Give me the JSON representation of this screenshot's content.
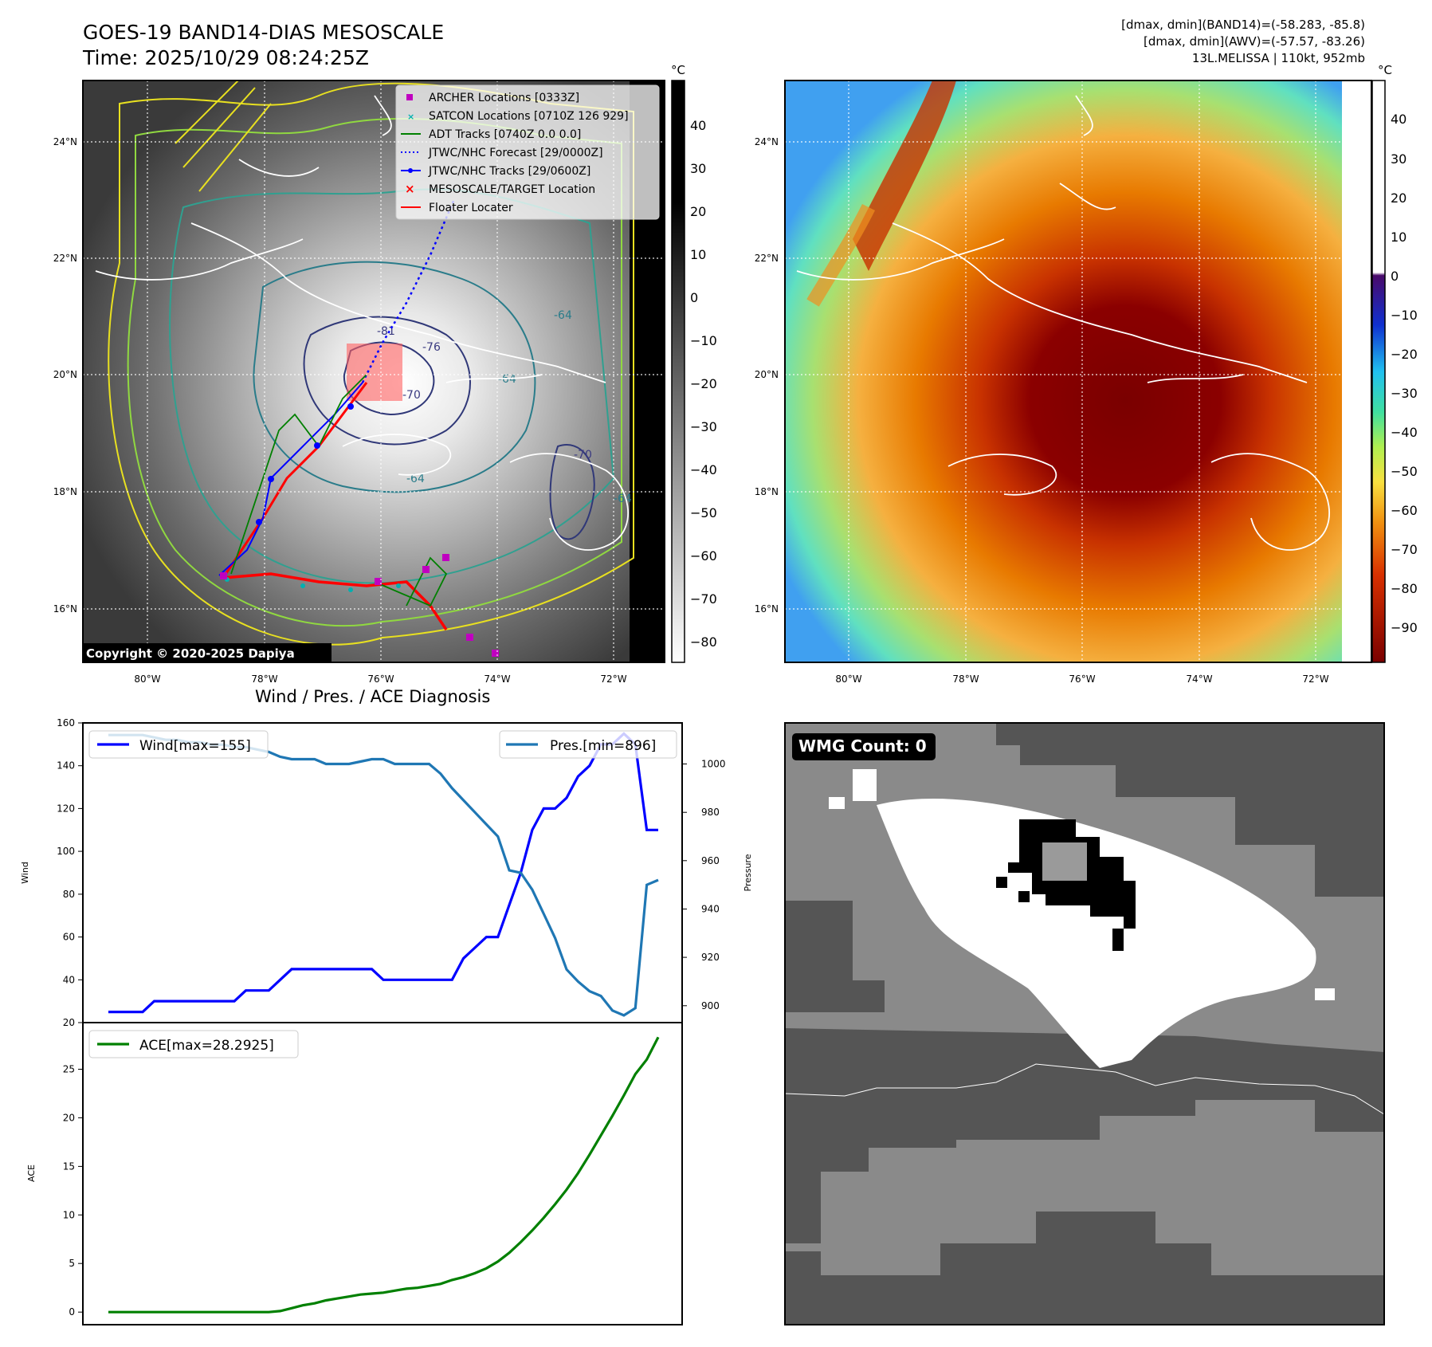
{
  "header": {
    "title_line1": "GOES-19 BAND14-DIAS MESOSCALE",
    "title_line2": "Time: 2025/10/29 08:24:25Z",
    "info_line1": "[dmax, dmin](BAND14)=(-58.283, -85.8)",
    "info_line2": "[dmax, dmin](AWV)=(-57.57, -83.26)",
    "info_line3": "13L.MELISSA | 110kt, 952mb"
  },
  "map_panel": {
    "lon_labels": [
      "80°W",
      "78°W",
      "76°W",
      "74°W",
      "72°W"
    ],
    "lat_labels": [
      "24°N",
      "22°N",
      "20°N",
      "18°N",
      "16°N"
    ],
    "copyright": "Copyright © 2020-2025 Dapiya",
    "legend": [
      "ARCHER Locations [0333Z]",
      "SATCON Locations [0710Z 126 929]",
      "ADT Tracks [0740Z 0.0 0.0]",
      "JTWC/NHC Forecast [29/0000Z]",
      "JTWC/NHC Tracks [29/0600Z]",
      "MESOSCALE/TARGET Location",
      "Floater Locater"
    ],
    "legend_colors": [
      "#c000c0",
      "#00b0b0",
      "#008000",
      "#0000ff",
      "#0000ff",
      "#ff0000",
      "#ff0000"
    ],
    "contour_labels": [
      "-81",
      "-76",
      "-70",
      "-64",
      "-64",
      "-64",
      "-64",
      "-70"
    ],
    "colorbar_unit": "°C",
    "colorbar_ticks": [
      "40",
      "30",
      "20",
      "10",
      "0",
      "−10",
      "−20",
      "−30",
      "−40",
      "−50",
      "−60",
      "−70",
      "−80"
    ]
  },
  "awv_panel": {
    "lon_labels": [
      "80°W",
      "78°W",
      "76°W",
      "74°W",
      "72°W"
    ],
    "lat_labels": [
      "24°N",
      "22°N",
      "20°N",
      "18°N",
      "16°N"
    ],
    "colorbar_unit": "°C",
    "colorbar_ticks": [
      "40",
      "30",
      "20",
      "10",
      "0",
      "−10",
      "−20",
      "−30",
      "−40",
      "−50",
      "−60",
      "−70",
      "−80",
      "−90"
    ]
  },
  "wmg_panel": {
    "badge": "WMG Count: 0"
  },
  "chart_data": {
    "type": "line",
    "title": "Wind / Pres. / ACE Diagnosis",
    "wind": {
      "name": "Wind[max=155]",
      "ylabel": "Wind",
      "ylim": [
        20,
        160
      ],
      "yticks": [
        20,
        40,
        60,
        80,
        100,
        120,
        140,
        160
      ],
      "color": "#0000ff",
      "values": [
        25,
        25,
        25,
        25,
        30,
        30,
        30,
        30,
        30,
        30,
        30,
        30,
        35,
        35,
        35,
        40,
        45,
        45,
        45,
        45,
        45,
        45,
        45,
        45,
        40,
        40,
        40,
        40,
        40,
        40,
        40,
        50,
        55,
        60,
        60,
        75,
        90,
        110,
        120,
        120,
        125,
        135,
        140,
        150,
        150,
        155,
        150,
        110,
        110
      ]
    },
    "pressure": {
      "name": "Pres.[min=896]",
      "ylabel": "Pressure",
      "ylim": [
        893,
        1017
      ],
      "yticks": [
        900,
        920,
        940,
        960,
        980,
        1000
      ],
      "color": "#1f77b4",
      "values": [
        1012,
        1012,
        1012,
        1012,
        1011,
        1010,
        1010,
        1009,
        1009,
        1008,
        1008,
        1007,
        1007,
        1006,
        1005,
        1003,
        1002,
        1002,
        1002,
        1000,
        1000,
        1000,
        1001,
        1002,
        1002,
        1000,
        1000,
        1000,
        1000,
        996,
        990,
        985,
        980,
        975,
        970,
        956,
        955,
        948,
        938,
        928,
        915,
        910,
        906,
        904,
        898,
        896,
        899,
        950,
        952
      ]
    },
    "ace": {
      "name": "ACE[max=28.2925]",
      "ylabel": "ACE",
      "ylim": [
        -1.3,
        29.8
      ],
      "yticks": [
        0,
        5,
        10,
        15,
        20,
        25
      ],
      "color": "#008000",
      "values": [
        0,
        0,
        0,
        0,
        0,
        0,
        0,
        0,
        0,
        0,
        0,
        0,
        0,
        0,
        0,
        0.1,
        0.4,
        0.7,
        0.9,
        1.2,
        1.4,
        1.6,
        1.8,
        1.9,
        2.0,
        2.2,
        2.4,
        2.5,
        2.7,
        2.9,
        3.3,
        3.6,
        4.0,
        4.5,
        5.2,
        6.1,
        7.2,
        8.4,
        9.7,
        11.1,
        12.6,
        14.3,
        16.2,
        18.2,
        20.2,
        22.3,
        24.5,
        26.0,
        28.3
      ]
    }
  }
}
